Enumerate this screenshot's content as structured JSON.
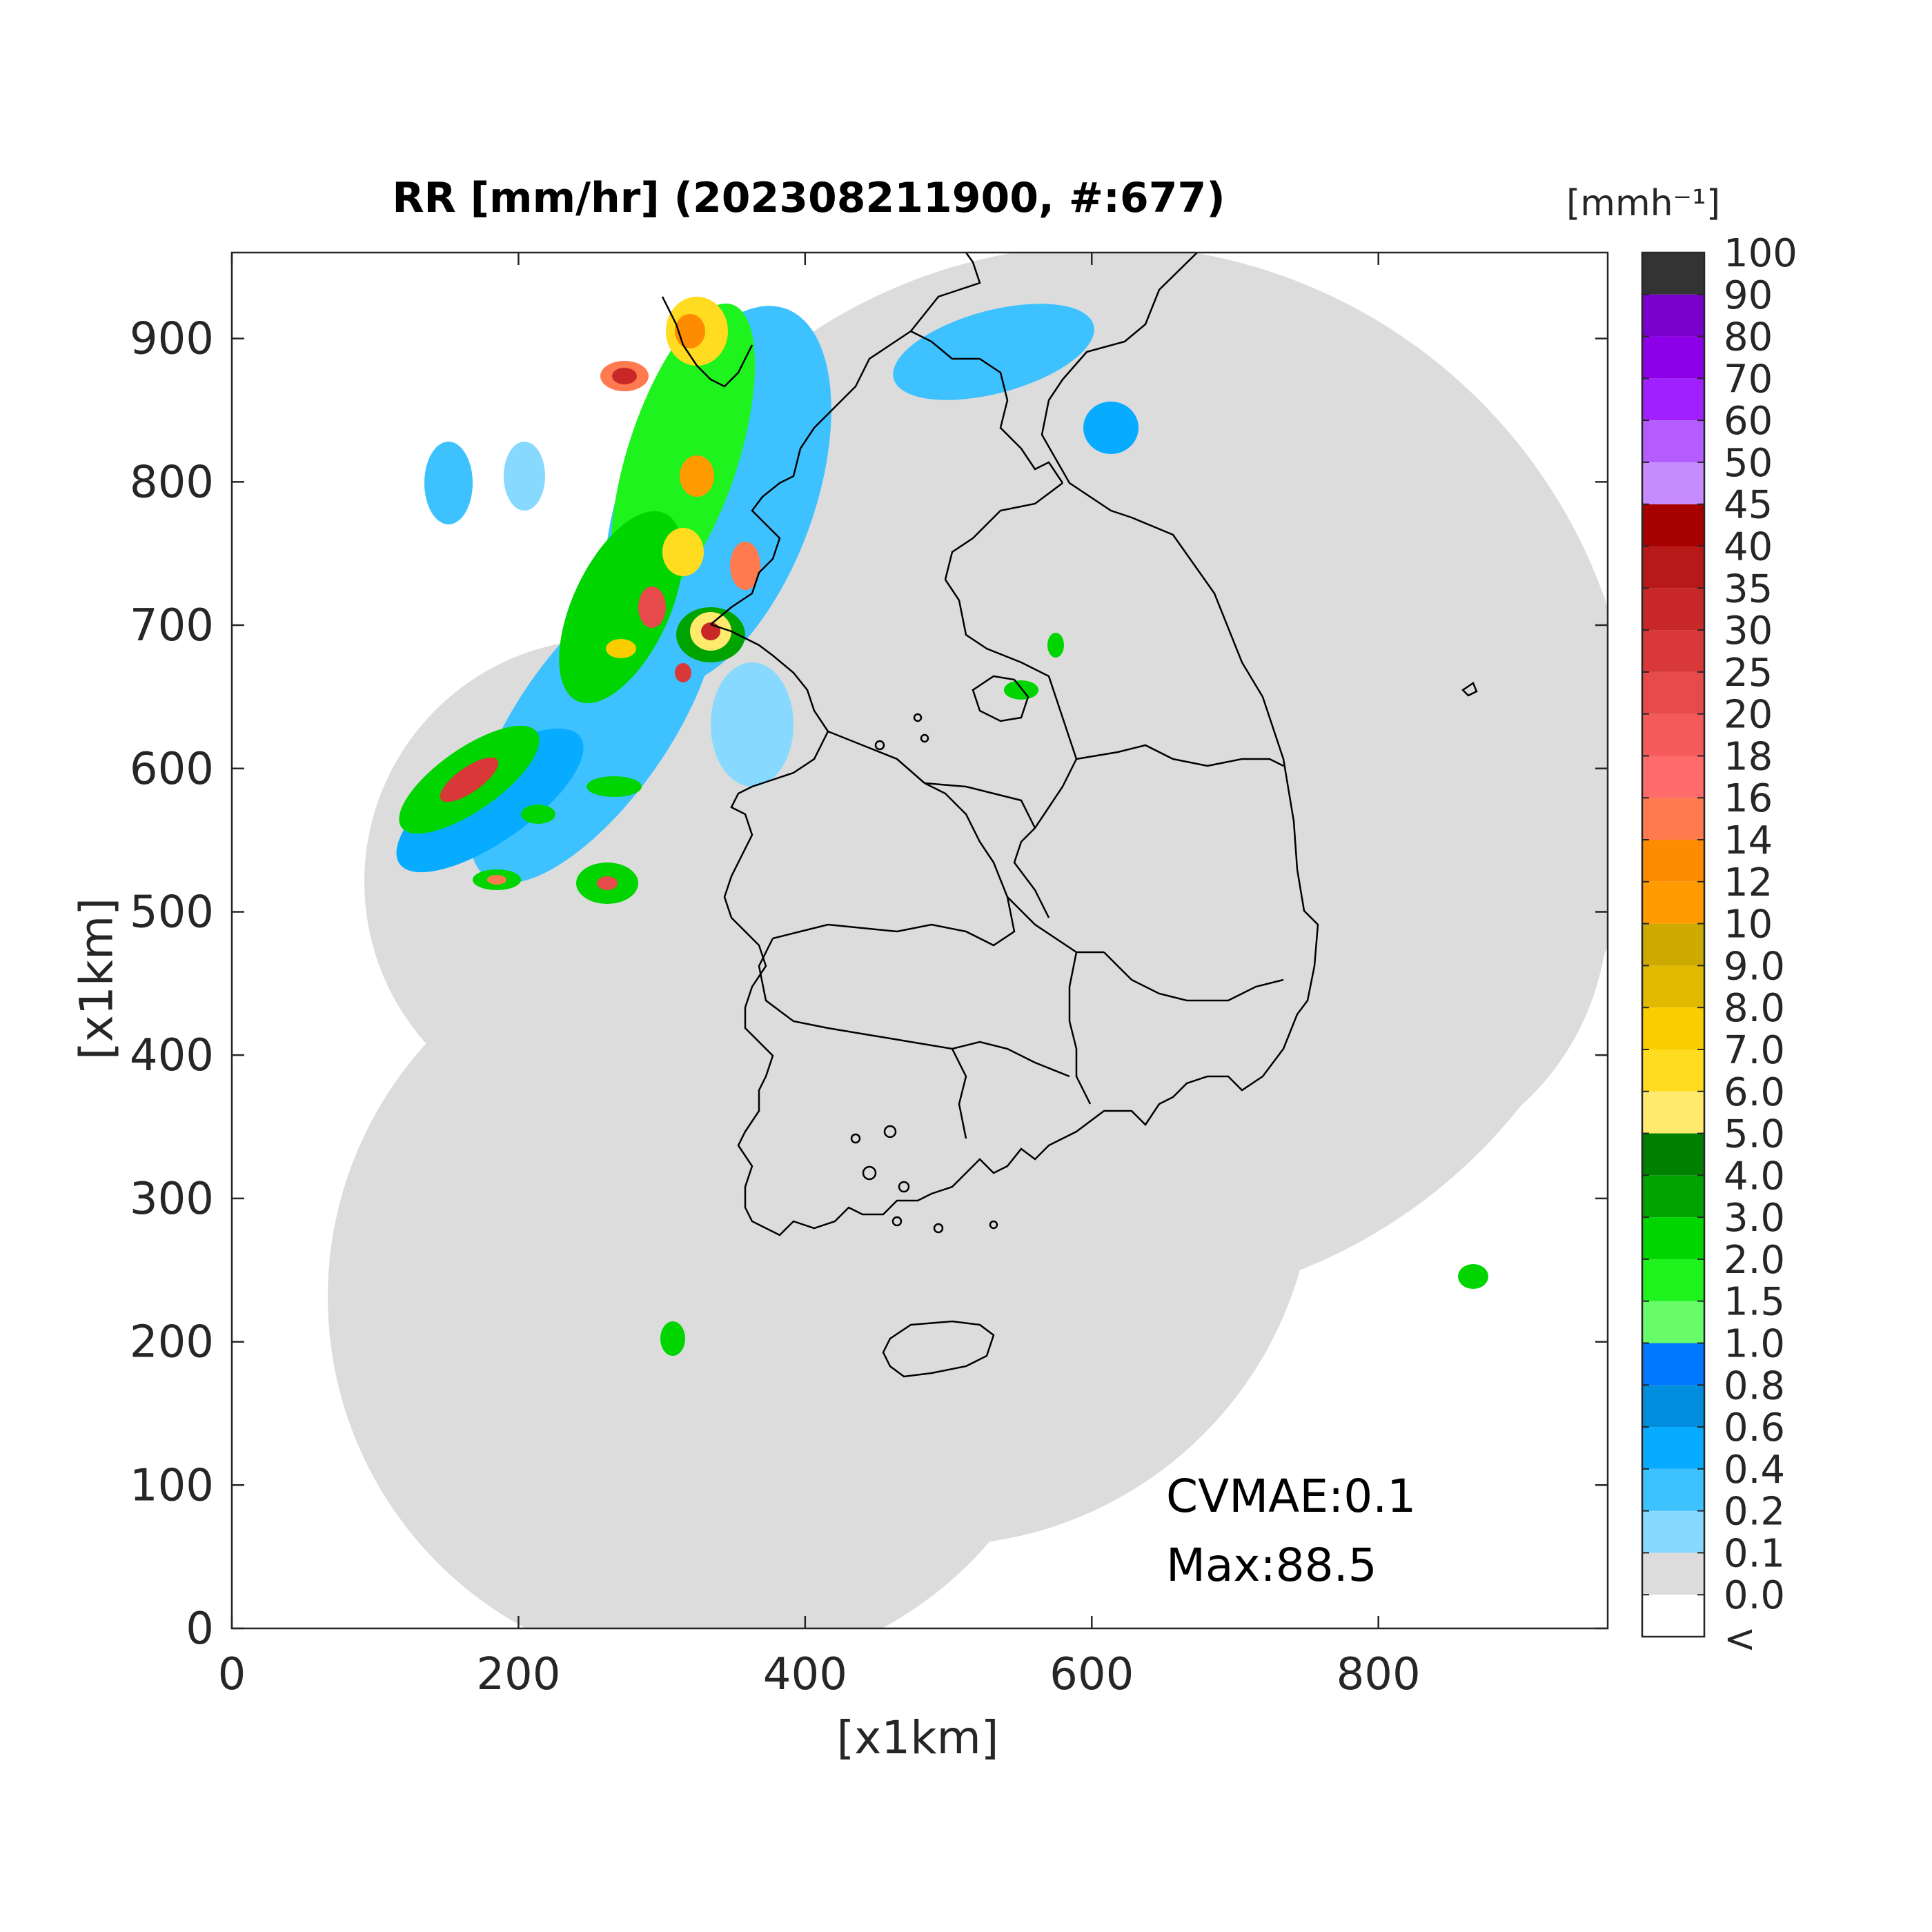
{
  "title": "RR [mm/hr] (202308211900, #:677)",
  "xlabel": "[x1km]",
  "ylabel": "[x1km]",
  "colorbar": {
    "unit_label": "[mmh⁻¹]",
    "under_label": "<",
    "levels": [
      {
        "label": "0.0",
        "color": "#dcdcdc"
      },
      {
        "label": "0.1",
        "color": "#87d9ff"
      },
      {
        "label": "0.2",
        "color": "#3ec1ff"
      },
      {
        "label": "0.4",
        "color": "#07abff"
      },
      {
        "label": "0.6",
        "color": "#008dde"
      },
      {
        "label": "0.8",
        "color": "#0077ff"
      },
      {
        "label": "1.0",
        "color": "#69fc69"
      },
      {
        "label": "1.5",
        "color": "#1ef31e"
      },
      {
        "label": "2.0",
        "color": "#00d500"
      },
      {
        "label": "3.0",
        "color": "#00a400"
      },
      {
        "label": "4.0",
        "color": "#008000"
      },
      {
        "label": "5.0",
        "color": "#ffea6e"
      },
      {
        "label": "6.0",
        "color": "#ffdc1f"
      },
      {
        "label": "7.0",
        "color": "#f9cd00"
      },
      {
        "label": "8.0",
        "color": "#e0b900"
      },
      {
        "label": "9.0",
        "color": "#ccaa00"
      },
      {
        "label": "10",
        "color": "#ff9b00"
      },
      {
        "label": "12",
        "color": "#ff8c00"
      },
      {
        "label": "14",
        "color": "#ff7a4f"
      },
      {
        "label": "16",
        "color": "#ff6a6a"
      },
      {
        "label": "18",
        "color": "#f55a5a"
      },
      {
        "label": "20",
        "color": "#e64a4a"
      },
      {
        "label": "25",
        "color": "#d83838"
      },
      {
        "label": "30",
        "color": "#c82828"
      },
      {
        "label": "35",
        "color": "#b71818"
      },
      {
        "label": "40",
        "color": "#a60000"
      },
      {
        "label": "45",
        "color": "#c68bff"
      },
      {
        "label": "50",
        "color": "#b45cff"
      },
      {
        "label": "60",
        "color": "#a020ff"
      },
      {
        "label": "70",
        "color": "#8c00e8"
      },
      {
        "label": "80",
        "color": "#7a00cc"
      },
      {
        "label": "90",
        "color": "#333333"
      },
      {
        "label": "100",
        "color": null
      }
    ]
  },
  "annotations": {
    "cvmae": "CVMAE:0.1",
    "max": "Max:88.5"
  },
  "chart_data": {
    "type": "heatmap",
    "title": "RR [mm/hr] (202308211900, #:677)",
    "xlabel": "[x1km]",
    "ylabel": "[x1km]",
    "xlim": [
      0,
      960
    ],
    "ylim": [
      0,
      960
    ],
    "xticks": [
      0,
      200,
      400,
      600,
      800
    ],
    "yticks": [
      0,
      100,
      200,
      300,
      400,
      500,
      600,
      700,
      800,
      900
    ],
    "grid": false,
    "colorbar_position": "right",
    "max_value": 88.5,
    "cvmae": 0.1
  },
  "colors": {
    "background_coverage": "#dcdcdc",
    "coastline": "#000000"
  }
}
